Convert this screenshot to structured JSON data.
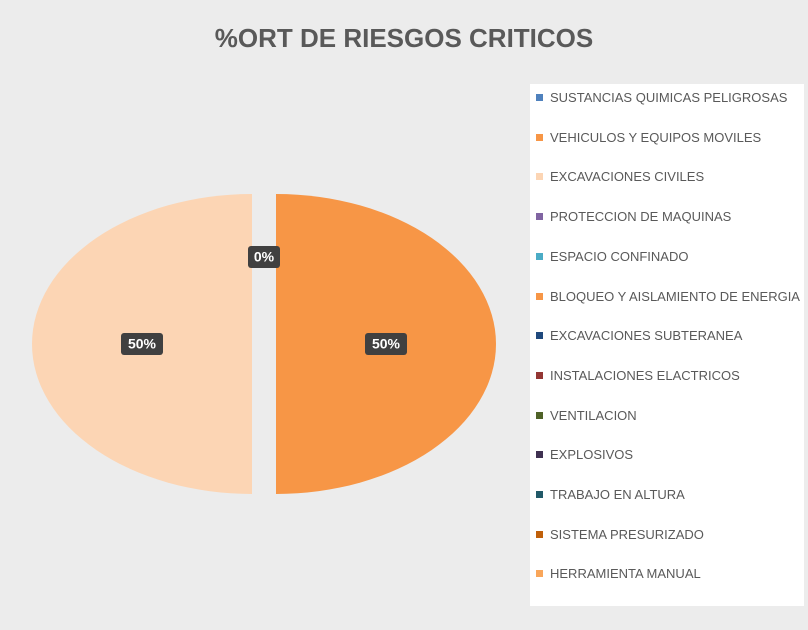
{
  "chart_data": {
    "type": "pie",
    "title": "%ORT DE RIESGOS CRITICOS",
    "categories": [
      "SUSTANCIAS QUIMICAS PELIGROSAS",
      "VEHICULOS Y EQUIPOS MOVILES",
      "EXCAVACIONES CIVILES",
      "PROTECCION DE MAQUINAS",
      "ESPACIO CONFINADO",
      "BLOQUEO Y AISLAMIENTO DE ENERGIA",
      "EXCAVACIONES SUBTERANEA",
      "INSTALACIONES ELACTRICOS",
      "VENTILACION",
      "EXPLOSIVOS",
      "TRABAJO EN ALTURA",
      "SISTEMA PRESURIZADO",
      "HERRAMIENTA MANUAL"
    ],
    "values": [
      0,
      50,
      50,
      0,
      0,
      0,
      0,
      0,
      0,
      0,
      0,
      0,
      0
    ],
    "value_labels": [
      "0%",
      "50%",
      "50%",
      null,
      null,
      null,
      null,
      null,
      null,
      null,
      null,
      null,
      null
    ],
    "colors": [
      "#4f81bd",
      "#f79646",
      "#fcd5b4",
      "#8064a2",
      "#4bacc6",
      "#f79646",
      "#1f497d",
      "#943634",
      "#4f6228",
      "#3f3151",
      "#215968",
      "#c0600a",
      "#f9a65a"
    ],
    "legend": "right"
  }
}
